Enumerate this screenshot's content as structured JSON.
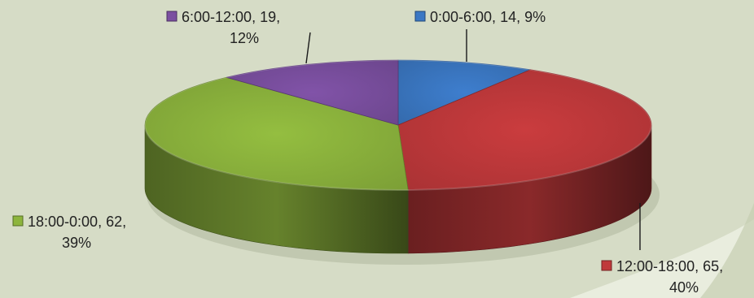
{
  "chart_data": {
    "type": "pie",
    "title": "",
    "three_d": true,
    "legend": "none",
    "slices": [
      {
        "label": "0:00-6:00",
        "value": 14,
        "percent": "9%",
        "color": "#3b78c4",
        "label_line1": "0:00-6:00, 14, 9%",
        "label_line2": ""
      },
      {
        "label": "12:00-18:00",
        "value": 65,
        "percent": "40%",
        "color": "#c0393b",
        "label_line1": "12:00-18:00, 65,",
        "label_line2": "40%"
      },
      {
        "label": "18:00-0:00",
        "value": 62,
        "percent": "39%",
        "color": "#8db53d",
        "label_line1": "18:00-0:00, 62,",
        "label_line2": "39%"
      },
      {
        "label": "6:00-12:00",
        "value": 19,
        "percent": "12%",
        "color": "#7b4fa0",
        "label_line1": "6:00-12:00, 19,",
        "label_line2": "12%"
      }
    ]
  }
}
